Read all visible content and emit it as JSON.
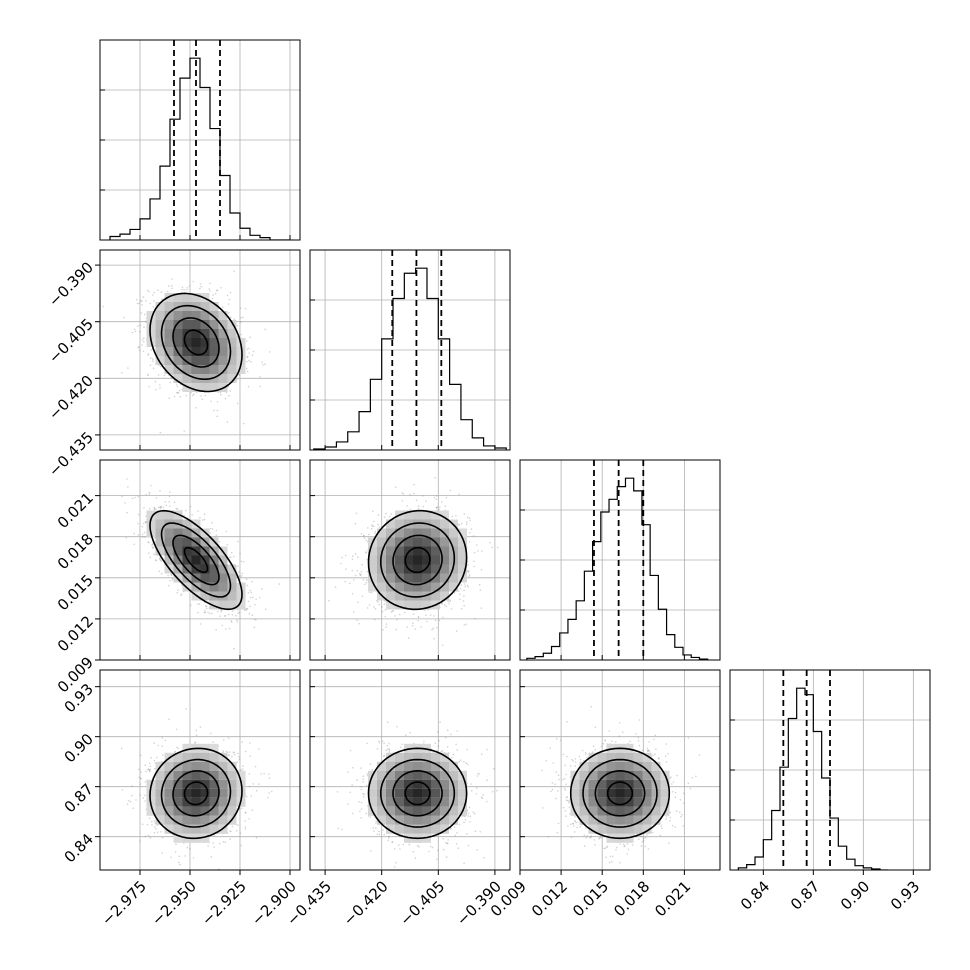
{
  "chart_data": {
    "type": "corner",
    "parameters": [
      {
        "id": "p0",
        "range": [
          -2.995,
          -2.895
        ],
        "ticks": [
          -2.975,
          -2.95,
          -2.925,
          -2.9
        ],
        "ticklabels": [
          "−2.975",
          "−2.950",
          "−2.925",
          "−2.900"
        ],
        "mean": -2.947,
        "sigma": 0.0115,
        "quantiles": [
          -2.958,
          -2.947,
          -2.935
        ],
        "histogram": {
          "bin_edges": [
            -2.99,
            -2.985,
            -2.98,
            -2.975,
            -2.97,
            -2.965,
            -2.96,
            -2.955,
            -2.95,
            -2.945,
            -2.94,
            -2.935,
            -2.93,
            -2.925,
            -2.92,
            -2.915,
            -2.91,
            -2.905,
            -2.9
          ],
          "counts": [
            3,
            5,
            9,
            18,
            35,
            63,
            103,
            138,
            155,
            130,
            95,
            55,
            23,
            10,
            4,
            2,
            0,
            0
          ]
        }
      },
      {
        "id": "p1",
        "range": [
          -0.439,
          -0.386
        ],
        "ticks": [
          -0.435,
          -0.42,
          -0.405,
          -0.39
        ],
        "ticklabels": [
          "−0.435",
          "−0.420",
          "−0.405",
          "−0.390"
        ],
        "mean": -0.4105,
        "sigma": 0.0065,
        "quantiles": [
          -0.4172,
          -0.4108,
          -0.4042
        ],
        "histogram": {
          "bin_edges": [
            -0.438,
            -0.435,
            -0.432,
            -0.429,
            -0.426,
            -0.423,
            -0.42,
            -0.417,
            -0.414,
            -0.411,
            -0.408,
            -0.405,
            -0.402,
            -0.399,
            -0.396,
            -0.393,
            -0.39,
            -0.387
          ],
          "counts": [
            1,
            3,
            8,
            18,
            38,
            70,
            110,
            150,
            175,
            180,
            150,
            110,
            65,
            30,
            12,
            4,
            2
          ]
        }
      },
      {
        "id": "p2",
        "range": [
          0.009,
          0.0236
        ],
        "ticks": [
          0.009,
          0.012,
          0.015,
          0.018,
          0.021
        ],
        "ticklabels": [
          "0.009",
          "0.012",
          "0.015",
          "0.018",
          "0.021"
        ],
        "mean": 0.0163,
        "sigma": 0.0018,
        "quantiles": [
          0.0144,
          0.0162,
          0.018
        ],
        "histogram": {
          "bin_edges": [
            0.0095,
            0.0101,
            0.0107,
            0.0113,
            0.0119,
            0.0125,
            0.0131,
            0.0137,
            0.0143,
            0.0149,
            0.0155,
            0.0161,
            0.0167,
            0.0173,
            0.0179,
            0.0185,
            0.0191,
            0.0197,
            0.0203,
            0.0209,
            0.0215,
            0.0221,
            0.0227
          ],
          "counts": [
            2,
            4,
            8,
            16,
            32,
            48,
            70,
            105,
            140,
            175,
            190,
            205,
            215,
            200,
            160,
            100,
            60,
            30,
            15,
            6,
            3,
            1
          ]
        }
      },
      {
        "id": "p3",
        "range": [
          0.82,
          0.94
        ],
        "ticks": [
          0.84,
          0.87,
          0.9,
          0.93
        ],
        "ticklabels": [
          "0.84",
          "0.87",
          "0.90",
          "0.93"
        ],
        "mean": 0.866,
        "sigma": 0.0135,
        "quantiles": [
          0.852,
          0.866,
          0.88
        ],
        "histogram": {
          "bin_edges": [
            0.825,
            0.83,
            0.835,
            0.84,
            0.845,
            0.85,
            0.855,
            0.86,
            0.865,
            0.87,
            0.875,
            0.88,
            0.885,
            0.89,
            0.895,
            0.9,
            0.905,
            0.91,
            0.915
          ],
          "counts": [
            2,
            5,
            12,
            28,
            55,
            95,
            140,
            168,
            162,
            128,
            85,
            48,
            22,
            10,
            4,
            2,
            1,
            0
          ]
        }
      }
    ],
    "correlations": {
      "p1_p0": -0.25,
      "p2_p0": -0.7,
      "p2_p1": 0.05,
      "p3_p0": 0.05,
      "p3_p1": 0.0,
      "p3_p2": 0.0
    },
    "contour_levels_sigma": [
      0.5,
      1.0,
      1.5,
      2.0
    ],
    "n_samples_per_panel": 1600,
    "grid": true,
    "xlabel": "",
    "ylabel": "",
    "title": ""
  },
  "colors": {
    "axes": "#000000",
    "grid": "#b0b0b0",
    "histogram_line": "#000000",
    "quantile_line": "#000000",
    "scatter": "#7f7f7f",
    "density_dark": "#262626",
    "density_light": "#f2f2f2",
    "contour": "#000000"
  }
}
